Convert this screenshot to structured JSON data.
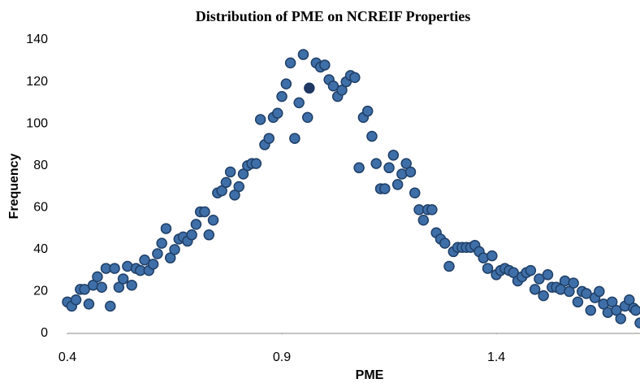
{
  "chart_data": {
    "type": "scatter",
    "title": "Distribution of PME on NCREIF Properties",
    "x_label": "PME",
    "y_label": "Frequency",
    "xlim": [
      0.4,
      1.735
    ],
    "xticks": [
      0.4,
      0.9,
      1.4
    ],
    "ylim": [
      0,
      140
    ],
    "yticks": [
      0,
      20,
      40,
      60,
      80,
      100,
      120,
      140
    ],
    "grid": false,
    "series": [
      {
        "color": "#3f6fa8",
        "edge": "#1f3f66",
        "x": [
          0.4,
          0.41,
          0.42,
          0.43,
          0.44,
          0.45,
          0.46,
          0.47,
          0.48,
          0.49,
          0.5,
          0.51,
          0.52,
          0.53,
          0.54,
          0.55,
          0.56,
          0.57,
          0.58,
          0.59,
          0.6,
          0.61,
          0.62,
          0.63,
          0.64,
          0.65,
          0.66,
          0.67,
          0.68,
          0.69,
          0.7,
          0.71,
          0.72,
          0.73,
          0.74,
          0.75,
          0.76,
          0.77,
          0.78,
          0.79,
          0.8,
          0.81,
          0.82,
          0.83,
          0.84,
          0.85,
          0.86,
          0.87,
          0.88,
          0.89,
          0.9,
          0.91,
          0.92,
          0.93,
          0.94,
          0.95,
          0.96,
          0.98,
          0.99,
          1.0,
          1.01,
          1.02,
          1.03,
          1.04,
          1.05,
          1.06,
          1.07,
          1.08,
          1.09,
          1.1,
          1.11,
          1.12,
          1.13,
          1.14,
          1.15,
          1.16,
          1.17,
          1.18,
          1.19,
          1.2,
          1.21,
          1.22,
          1.23,
          1.24,
          1.25,
          1.26,
          1.27,
          1.28,
          1.29,
          1.3,
          1.31,
          1.32,
          1.33,
          1.34,
          1.35,
          1.36,
          1.37,
          1.38,
          1.39,
          1.4,
          1.41,
          1.42,
          1.43,
          1.44,
          1.45,
          1.46,
          1.47,
          1.48,
          1.49,
          1.5,
          1.51,
          1.52,
          1.53,
          1.54,
          1.55,
          1.56,
          1.57,
          1.58,
          1.59,
          1.6,
          1.61,
          1.62,
          1.63,
          1.64,
          1.65,
          1.66,
          1.67,
          1.68,
          1.69,
          1.7,
          1.71,
          1.72,
          1.725,
          1.735
        ],
        "values": [
          15,
          13,
          16,
          21,
          21,
          14,
          23,
          27,
          22,
          31,
          13,
          31,
          22,
          26,
          32,
          23,
          31,
          30,
          35,
          30,
          33,
          38,
          43,
          50,
          36,
          40,
          45,
          46,
          44,
          47,
          52,
          58,
          58,
          47,
          54,
          67,
          68,
          72,
          77,
          66,
          70,
          76,
          80,
          81,
          81,
          102,
          90,
          93,
          103,
          105,
          113,
          119,
          129,
          93,
          110,
          133,
          103,
          129,
          127,
          128,
          121,
          118,
          113,
          116,
          120,
          123,
          122,
          79,
          103,
          106,
          94,
          81,
          69,
          69,
          79,
          85,
          71,
          76,
          81,
          77,
          67,
          59,
          54,
          59,
          59,
          48,
          45,
          43,
          32,
          39,
          41,
          41,
          41,
          41,
          42,
          39,
          36,
          31,
          37,
          28,
          30,
          31,
          30,
          29,
          25,
          27,
          29,
          30,
          21,
          26,
          18,
          28,
          22,
          22,
          21,
          25,
          20,
          24,
          15,
          20,
          19,
          11,
          17,
          20,
          14,
          10,
          15,
          11,
          7,
          13,
          16,
          12,
          11,
          5
        ]
      },
      {
        "color": "#1f3864",
        "edge": "#1f3864",
        "x": [
          0.964
        ],
        "values": [
          117
        ]
      }
    ]
  }
}
